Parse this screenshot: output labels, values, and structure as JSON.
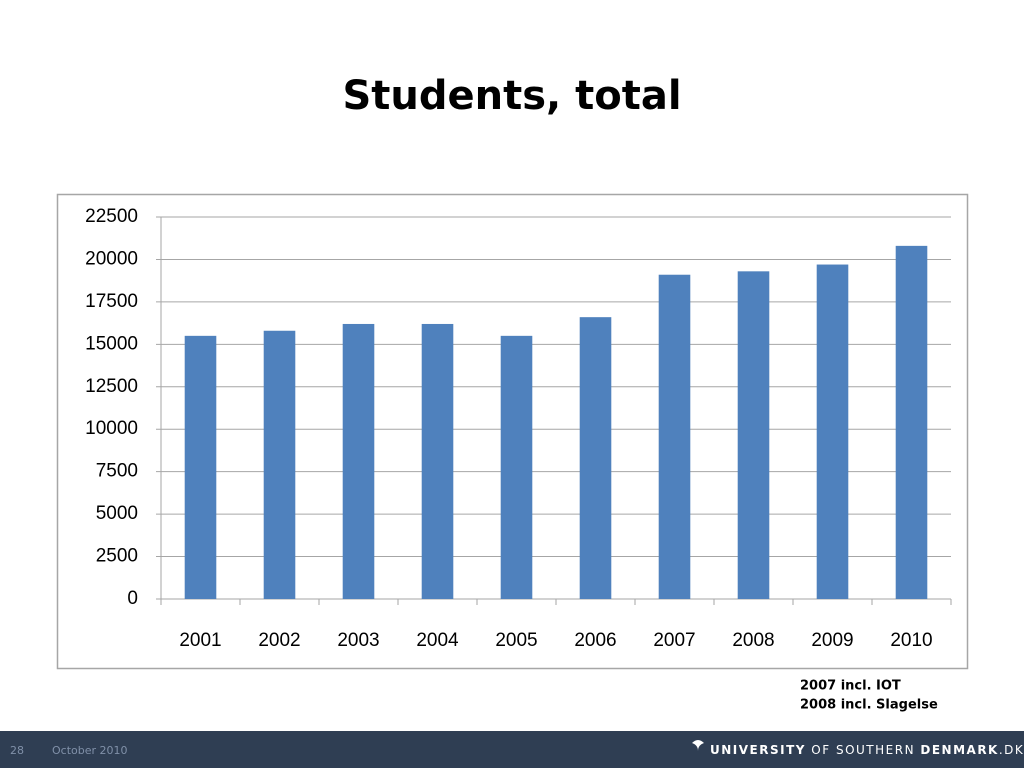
{
  "slide_number": "28",
  "date": "October 2010",
  "logo_parts": [
    "UNIVERSITY",
    "OF SOUTHERN",
    "DENMARK",
    ".DK"
  ],
  "notes": [
    "2007 incl. IOT",
    "2008 incl. Slagelse"
  ],
  "chart_data": {
    "type": "bar",
    "title": "Students, total",
    "categories": [
      "2001",
      "2002",
      "2003",
      "2004",
      "2005",
      "2006",
      "2007",
      "2008",
      "2009",
      "2010"
    ],
    "values": [
      15500,
      15800,
      16200,
      16200,
      15500,
      16600,
      19100,
      19300,
      19700,
      20800
    ],
    "color": "#4f81bd",
    "ylim": [
      0,
      22500
    ],
    "yticks": [
      0,
      2500,
      5000,
      7500,
      10000,
      12500,
      15000,
      17500,
      20000,
      22500
    ],
    "grid": true
  }
}
